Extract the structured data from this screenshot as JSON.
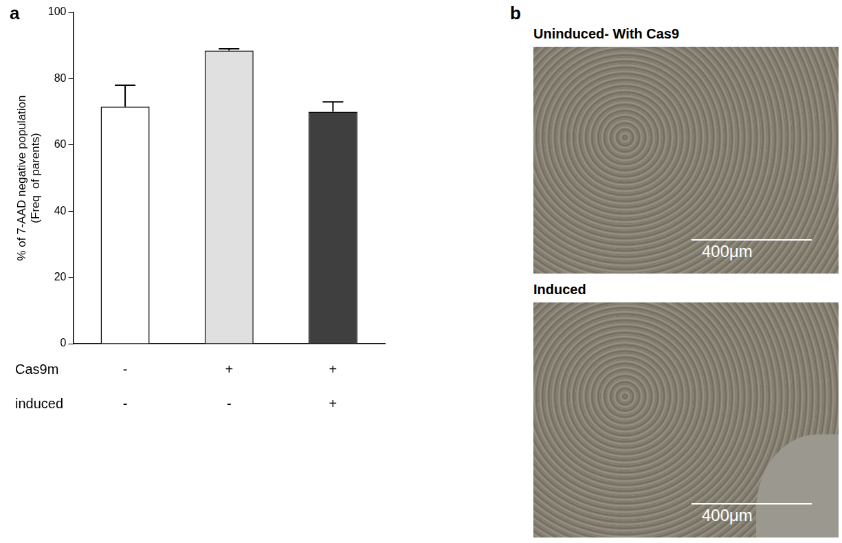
{
  "chart_data": {
    "type": "bar",
    "panel": "a",
    "y_label": [
      "% of 7-AAD negative population",
      "(Freq  of parents)"
    ],
    "categories": [
      null,
      null,
      null
    ],
    "values": [
      71.5,
      88.5,
      70
    ],
    "errors": [
      6.5,
      0.5,
      3
    ],
    "colors": [
      "#ffffff",
      "#e0e0e0",
      "#3f3f3f"
    ],
    "condition_rows": [
      {
        "name": "Cas9m",
        "values": [
          "-",
          "+",
          "+"
        ]
      },
      {
        "name": "induced",
        "values": [
          "-",
          "-",
          "+"
        ]
      }
    ],
    "ylim": [
      0,
      100
    ],
    "yticks": [
      0,
      20,
      40,
      60,
      80,
      100
    ],
    "grid": false
  },
  "images_panel": {
    "panel": "b",
    "images": [
      {
        "title": "Uninduced- With Cas9",
        "scale_bar": "400μm"
      },
      {
        "title": "Induced",
        "scale_bar": "400μm"
      }
    ]
  }
}
